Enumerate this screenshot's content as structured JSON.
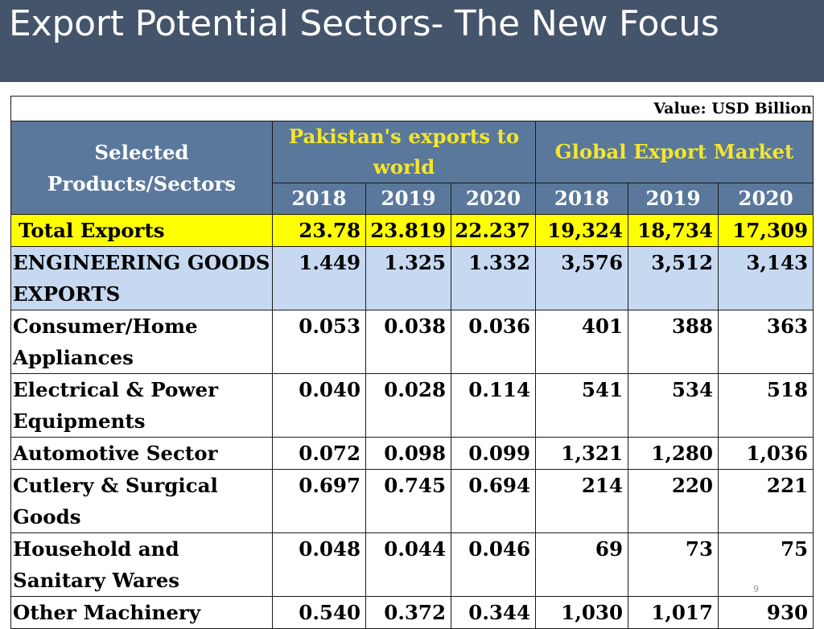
{
  "slide": {
    "title": "Export Potential Sectors- The New Focus",
    "page_number": "9"
  },
  "table": {
    "unit_note": "Value: USD Billion",
    "first_column_header": "Selected Products/Sectors",
    "group_headers": [
      "Pakistan's exports to world",
      "Global Export Market"
    ],
    "years": [
      "2018",
      "2019",
      "2020",
      "2018",
      "2019",
      "2020"
    ],
    "rows": [
      {
        "label": "Total Exports",
        "values": [
          "23.78",
          "23.819",
          "22.237",
          "19,324",
          "18,734",
          "17,309"
        ]
      },
      {
        "label": "ENGINEERING GOODS EXPORTS",
        "values": [
          "1.449",
          "1.325",
          "1.332",
          "3,576",
          "3,512",
          "3,143"
        ]
      },
      {
        "label": "Consumer/Home Appliances",
        "values": [
          "0.053",
          "0.038",
          "0.036",
          "401",
          "388",
          "363"
        ]
      },
      {
        "label": "Electrical & Power Equipments",
        "values": [
          "0.040",
          "0.028",
          "0.114",
          "541",
          "534",
          "518"
        ]
      },
      {
        "label": "Automotive Sector",
        "values": [
          "0.072",
          "0.098",
          "0.099",
          "1,321",
          "1,280",
          "1,036"
        ]
      },
      {
        "label": "Cutlery & Surgical Goods",
        "values": [
          "0.697",
          "0.745",
          "0.694",
          "214",
          "220",
          "221"
        ]
      },
      {
        "label": "Household and Sanitary Wares",
        "values": [
          "0.048",
          "0.044",
          "0.046",
          "69",
          "73",
          "75"
        ]
      },
      {
        "label": "Other Machinery",
        "values": [
          "0.540",
          "0.372",
          "0.344",
          "1,030",
          "1,017",
          "930"
        ]
      }
    ]
  },
  "colors": {
    "header_band": "#44546a",
    "table_header": "#5a789b",
    "group_header_text": "#f3e62d",
    "total_row": "#ffff00",
    "engineering_row": "#c6d9f1"
  }
}
